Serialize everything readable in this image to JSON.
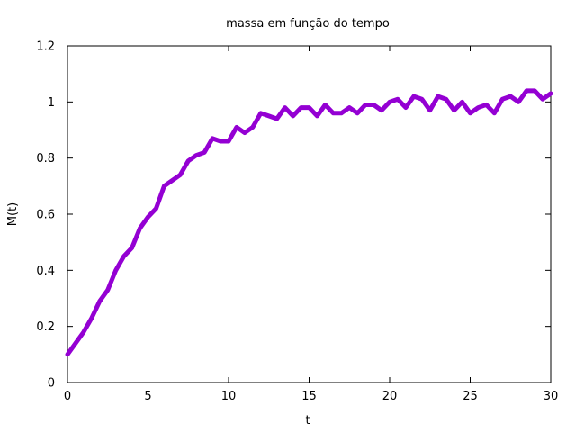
{
  "chart_data": {
    "type": "line",
    "title": "massa em função do tempo",
    "xlabel": "t",
    "ylabel": "M(t)",
    "xlim": [
      0,
      30
    ],
    "ylim": [
      0,
      1.2
    ],
    "xticks": [
      0,
      5,
      10,
      15,
      20,
      25,
      30
    ],
    "xtick_labels": [
      "0",
      "5",
      "10",
      "15",
      "20",
      "25",
      "30"
    ],
    "yticks": [
      0,
      0.2,
      0.4,
      0.6,
      0.8,
      1.0,
      1.2
    ],
    "ytick_labels": [
      "0",
      "0.2",
      "0.4",
      "0.6",
      "0.8",
      "1",
      "1.2"
    ],
    "grid": false,
    "series": [
      {
        "color": "#9400d3",
        "x": [
          0,
          0.5,
          1,
          1.5,
          2,
          2.5,
          3,
          3.5,
          4,
          4.5,
          5,
          5.5,
          6,
          6.5,
          7,
          7.5,
          8,
          8.5,
          9,
          9.5,
          10,
          10.5,
          11,
          11.5,
          12,
          12.5,
          13,
          13.5,
          14,
          14.5,
          15,
          15.5,
          16,
          16.5,
          17,
          17.5,
          18,
          18.5,
          19,
          19.5,
          20,
          20.5,
          21,
          21.5,
          22,
          22.5,
          23,
          23.5,
          24,
          24.5,
          25,
          25.5,
          26,
          26.5,
          27,
          27.5,
          28,
          28.5,
          29,
          29.5,
          30
        ],
        "values": [
          0.1,
          0.14,
          0.18,
          0.23,
          0.29,
          0.33,
          0.4,
          0.45,
          0.48,
          0.55,
          0.59,
          0.62,
          0.7,
          0.72,
          0.74,
          0.79,
          0.81,
          0.82,
          0.87,
          0.86,
          0.86,
          0.91,
          0.89,
          0.91,
          0.96,
          0.95,
          0.94,
          0.98,
          0.95,
          0.98,
          0.98,
          0.95,
          0.99,
          0.96,
          0.96,
          0.98,
          0.96,
          0.99,
          0.99,
          0.97,
          1.0,
          1.01,
          0.98,
          1.02,
          1.01,
          0.97,
          1.02,
          1.01,
          0.97,
          1.0,
          0.96,
          0.98,
          0.99,
          0.96,
          1.01,
          1.02,
          1.0,
          1.04,
          1.04,
          1.01,
          1.03
        ]
      }
    ]
  }
}
